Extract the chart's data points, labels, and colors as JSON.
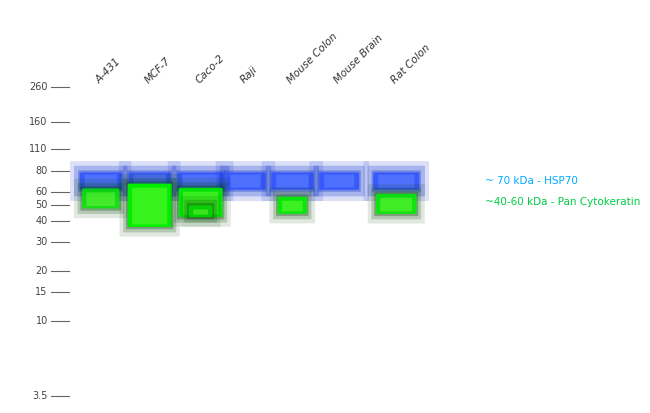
{
  "figure_bg": "#ffffff",
  "gel_color": "#000000",
  "sample_labels": [
    "A-431",
    "MCF-7",
    "Caco-2",
    "Raji",
    "Mouse Colon",
    "Mouse Brain",
    "Rat Colon"
  ],
  "ladder_marks": [
    260,
    160,
    110,
    80,
    60,
    50,
    40,
    30,
    20,
    15,
    10,
    3.5
  ],
  "hsp70_label": "~ 70 kDa - HSP70",
  "hsp70_color": "#00aaff",
  "pan_ck_label": "~40-60 kDa - Pan Cytokeratin",
  "pan_ck_color": "#00cc44",
  "blue_color": "#3355ff",
  "green_color": "#00ee00",
  "label_fontsize": 7.5,
  "ladder_fontsize": 7.0
}
